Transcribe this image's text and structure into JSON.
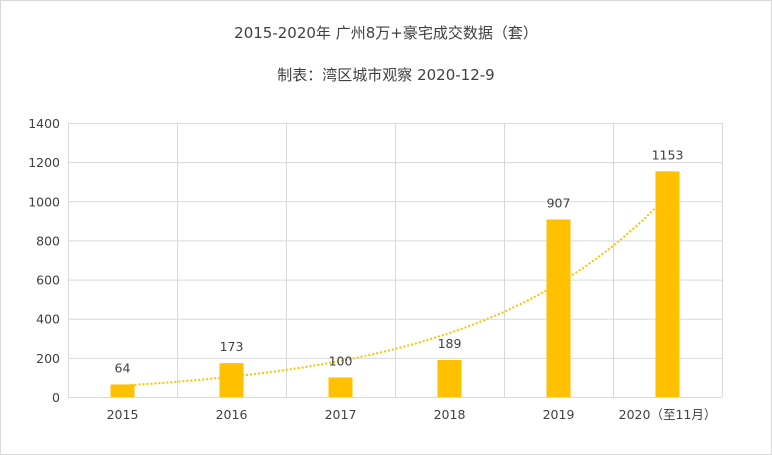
{
  "chart_data": {
    "type": "bar",
    "title": "2015-2020年 广州8万+豪宅成交数据（套）",
    "subtitle": "制表：湾区城市观察 2020-12-9",
    "categories": [
      "2015",
      "2016",
      "2017",
      "2018",
      "2019",
      "2020（至11月）"
    ],
    "values": [
      64,
      173,
      100,
      189,
      907,
      1153
    ],
    "data_labels": [
      "64",
      "173",
      "100",
      "189",
      "907",
      "1153"
    ],
    "ylim": [
      0,
      1400
    ],
    "yticks": [
      "0",
      "200",
      "400",
      "600",
      "800",
      "1000",
      "1200",
      "1400"
    ],
    "grid": true,
    "trendline": "exponential",
    "colors": {
      "bar": "#FFC000",
      "trendline": "#FFC000",
      "grid": "#D9D9D9",
      "text": "#404040"
    }
  }
}
